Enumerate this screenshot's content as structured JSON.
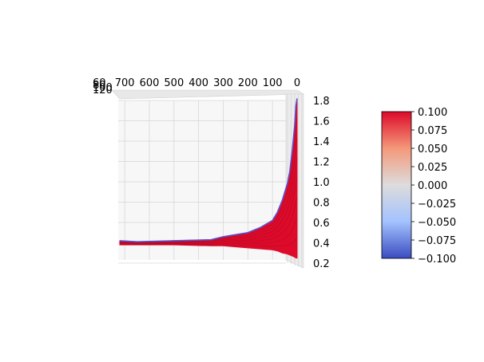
{
  "chart_data": {
    "type": "surface",
    "view": "3d-rotated",
    "x_axis": {
      "ticks": [
        700,
        600,
        500,
        400,
        300,
        200,
        100,
        0
      ],
      "range": [
        0,
        720
      ]
    },
    "z_axis": {
      "ticks": [
        1.8,
        1.6,
        1.4,
        1.2,
        1.0,
        0.8,
        0.6,
        0.4,
        0.2
      ],
      "range": [
        0.2,
        1.8
      ]
    },
    "y_axis_ticks_overlapping": [
      "60",
      "80",
      "100",
      "120"
    ],
    "grid": true,
    "surface_color": "#dd0a2a",
    "surface_edge_color": "#5a4fcf",
    "surface_profile": {
      "x": [
        720,
        650,
        500,
        350,
        300,
        250,
        200,
        150,
        100,
        80,
        60,
        40,
        30,
        20,
        10,
        5,
        0
      ],
      "z_top": [
        0.42,
        0.41,
        0.42,
        0.43,
        0.46,
        0.48,
        0.5,
        0.55,
        0.62,
        0.7,
        0.82,
        0.98,
        1.1,
        1.3,
        1.55,
        1.75,
        1.82
      ],
      "z_bottom": [
        0.38,
        0.38,
        0.38,
        0.37,
        0.37,
        0.36,
        0.35,
        0.34,
        0.33,
        0.32,
        0.3,
        0.29,
        0.28,
        0.27,
        0.26,
        0.25,
        0.25
      ]
    },
    "colorbar": {
      "ticks": [
        "0.100",
        "0.075",
        "0.050",
        "0.025",
        "0.000",
        "−0.025",
        "−0.050",
        "−0.075",
        "−0.100"
      ],
      "range": [
        -0.1,
        0.1
      ],
      "colormap": "coolwarm",
      "colors": [
        "#dd0a2a",
        "#f4987a",
        "#dddcdc",
        "#a3c2fe",
        "#3b4cc0"
      ]
    }
  }
}
